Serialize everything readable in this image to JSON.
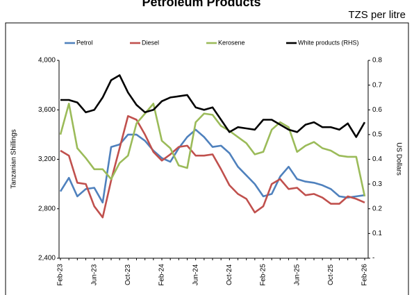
{
  "chart_data": {
    "type": "line",
    "title": "Petroleum Products",
    "subtitle": "TZS per litre",
    "y_label": "Tanzanian Shillings",
    "y2_label": "US Dollars",
    "legend": "top",
    "grid": false,
    "categories": [
      "Feb-23",
      null,
      null,
      null,
      "Jun-23",
      null,
      null,
      null,
      "Oct-23",
      null,
      null,
      null,
      "Feb-24",
      null,
      null,
      null,
      "Jun-24",
      null,
      null,
      null,
      "Oct-24",
      null,
      null,
      null,
      "Feb-25",
      null,
      null,
      null,
      "Jun-25",
      null,
      null,
      null,
      "Oct-25",
      null,
      null,
      null,
      "Feb-26"
    ],
    "ylim": [
      2400,
      4000
    ],
    "yticks": [
      {
        "value": 2400,
        "label": "2,400"
      },
      {
        "value": 2800,
        "label": "2,800"
      },
      {
        "value": 3200,
        "label": "3,200"
      },
      {
        "value": 3600,
        "label": "3,600"
      },
      {
        "value": 4000,
        "label": "4,000"
      }
    ],
    "y2lim": [
      0,
      0.8
    ],
    "y2ticks": [
      {
        "value": 0,
        "label": "-"
      },
      0.1,
      0.2,
      0.3,
      0.4,
      0.5,
      0.6,
      0.7,
      0.8
    ],
    "series": [
      {
        "name": "Petrol",
        "color": "#4f81bd",
        "values": [
          2940,
          3050,
          2900,
          2960,
          2970,
          2850,
          3300,
          3320,
          3400,
          3400,
          3350,
          3270,
          3210,
          3180,
          3290,
          3380,
          3440,
          3380,
          3300,
          3310,
          3250,
          3140,
          3070,
          3000,
          2900,
          2920,
          3060,
          3140,
          3040,
          3020,
          3010,
          2990,
          2960,
          2900,
          2890,
          2900,
          2910
        ]
      },
      {
        "name": "Diesel",
        "color": "#c0504d",
        "values": [
          3270,
          3230,
          3010,
          3000,
          2820,
          2730,
          3030,
          3290,
          3550,
          3520,
          3400,
          3260,
          3190,
          3240,
          3300,
          3310,
          3230,
          3230,
          3240,
          3120,
          2990,
          2920,
          2880,
          2770,
          2820,
          3000,
          3040,
          2960,
          2970,
          2910,
          2920,
          2890,
          2840,
          2840,
          2900,
          2880,
          2850
        ]
      },
      {
        "name": "Kerosene",
        "color": "#9bbb59",
        "values": [
          3400,
          3650,
          3290,
          3210,
          3120,
          3120,
          3040,
          3170,
          3230,
          3490,
          3570,
          3650,
          3350,
          3290,
          3150,
          3130,
          3500,
          3570,
          3560,
          3470,
          3430,
          3380,
          3330,
          3240,
          3260,
          3440,
          3500,
          3460,
          3260,
          3310,
          3340,
          3290,
          3270,
          3230,
          3220,
          3220,
          2900
        ]
      },
      {
        "name": "White products (RHS)",
        "color": "#000000",
        "axis": "y2",
        "values": [
          0.64,
          0.64,
          0.63,
          0.59,
          0.6,
          0.65,
          0.72,
          0.74,
          0.67,
          0.62,
          0.59,
          0.6,
          0.635,
          0.65,
          0.655,
          0.66,
          0.61,
          0.6,
          0.61,
          0.56,
          0.51,
          0.53,
          0.525,
          0.52,
          0.56,
          0.56,
          0.54,
          0.52,
          0.51,
          0.54,
          0.55,
          0.53,
          0.53,
          0.52,
          0.545,
          0.49,
          0.55
        ]
      }
    ]
  }
}
